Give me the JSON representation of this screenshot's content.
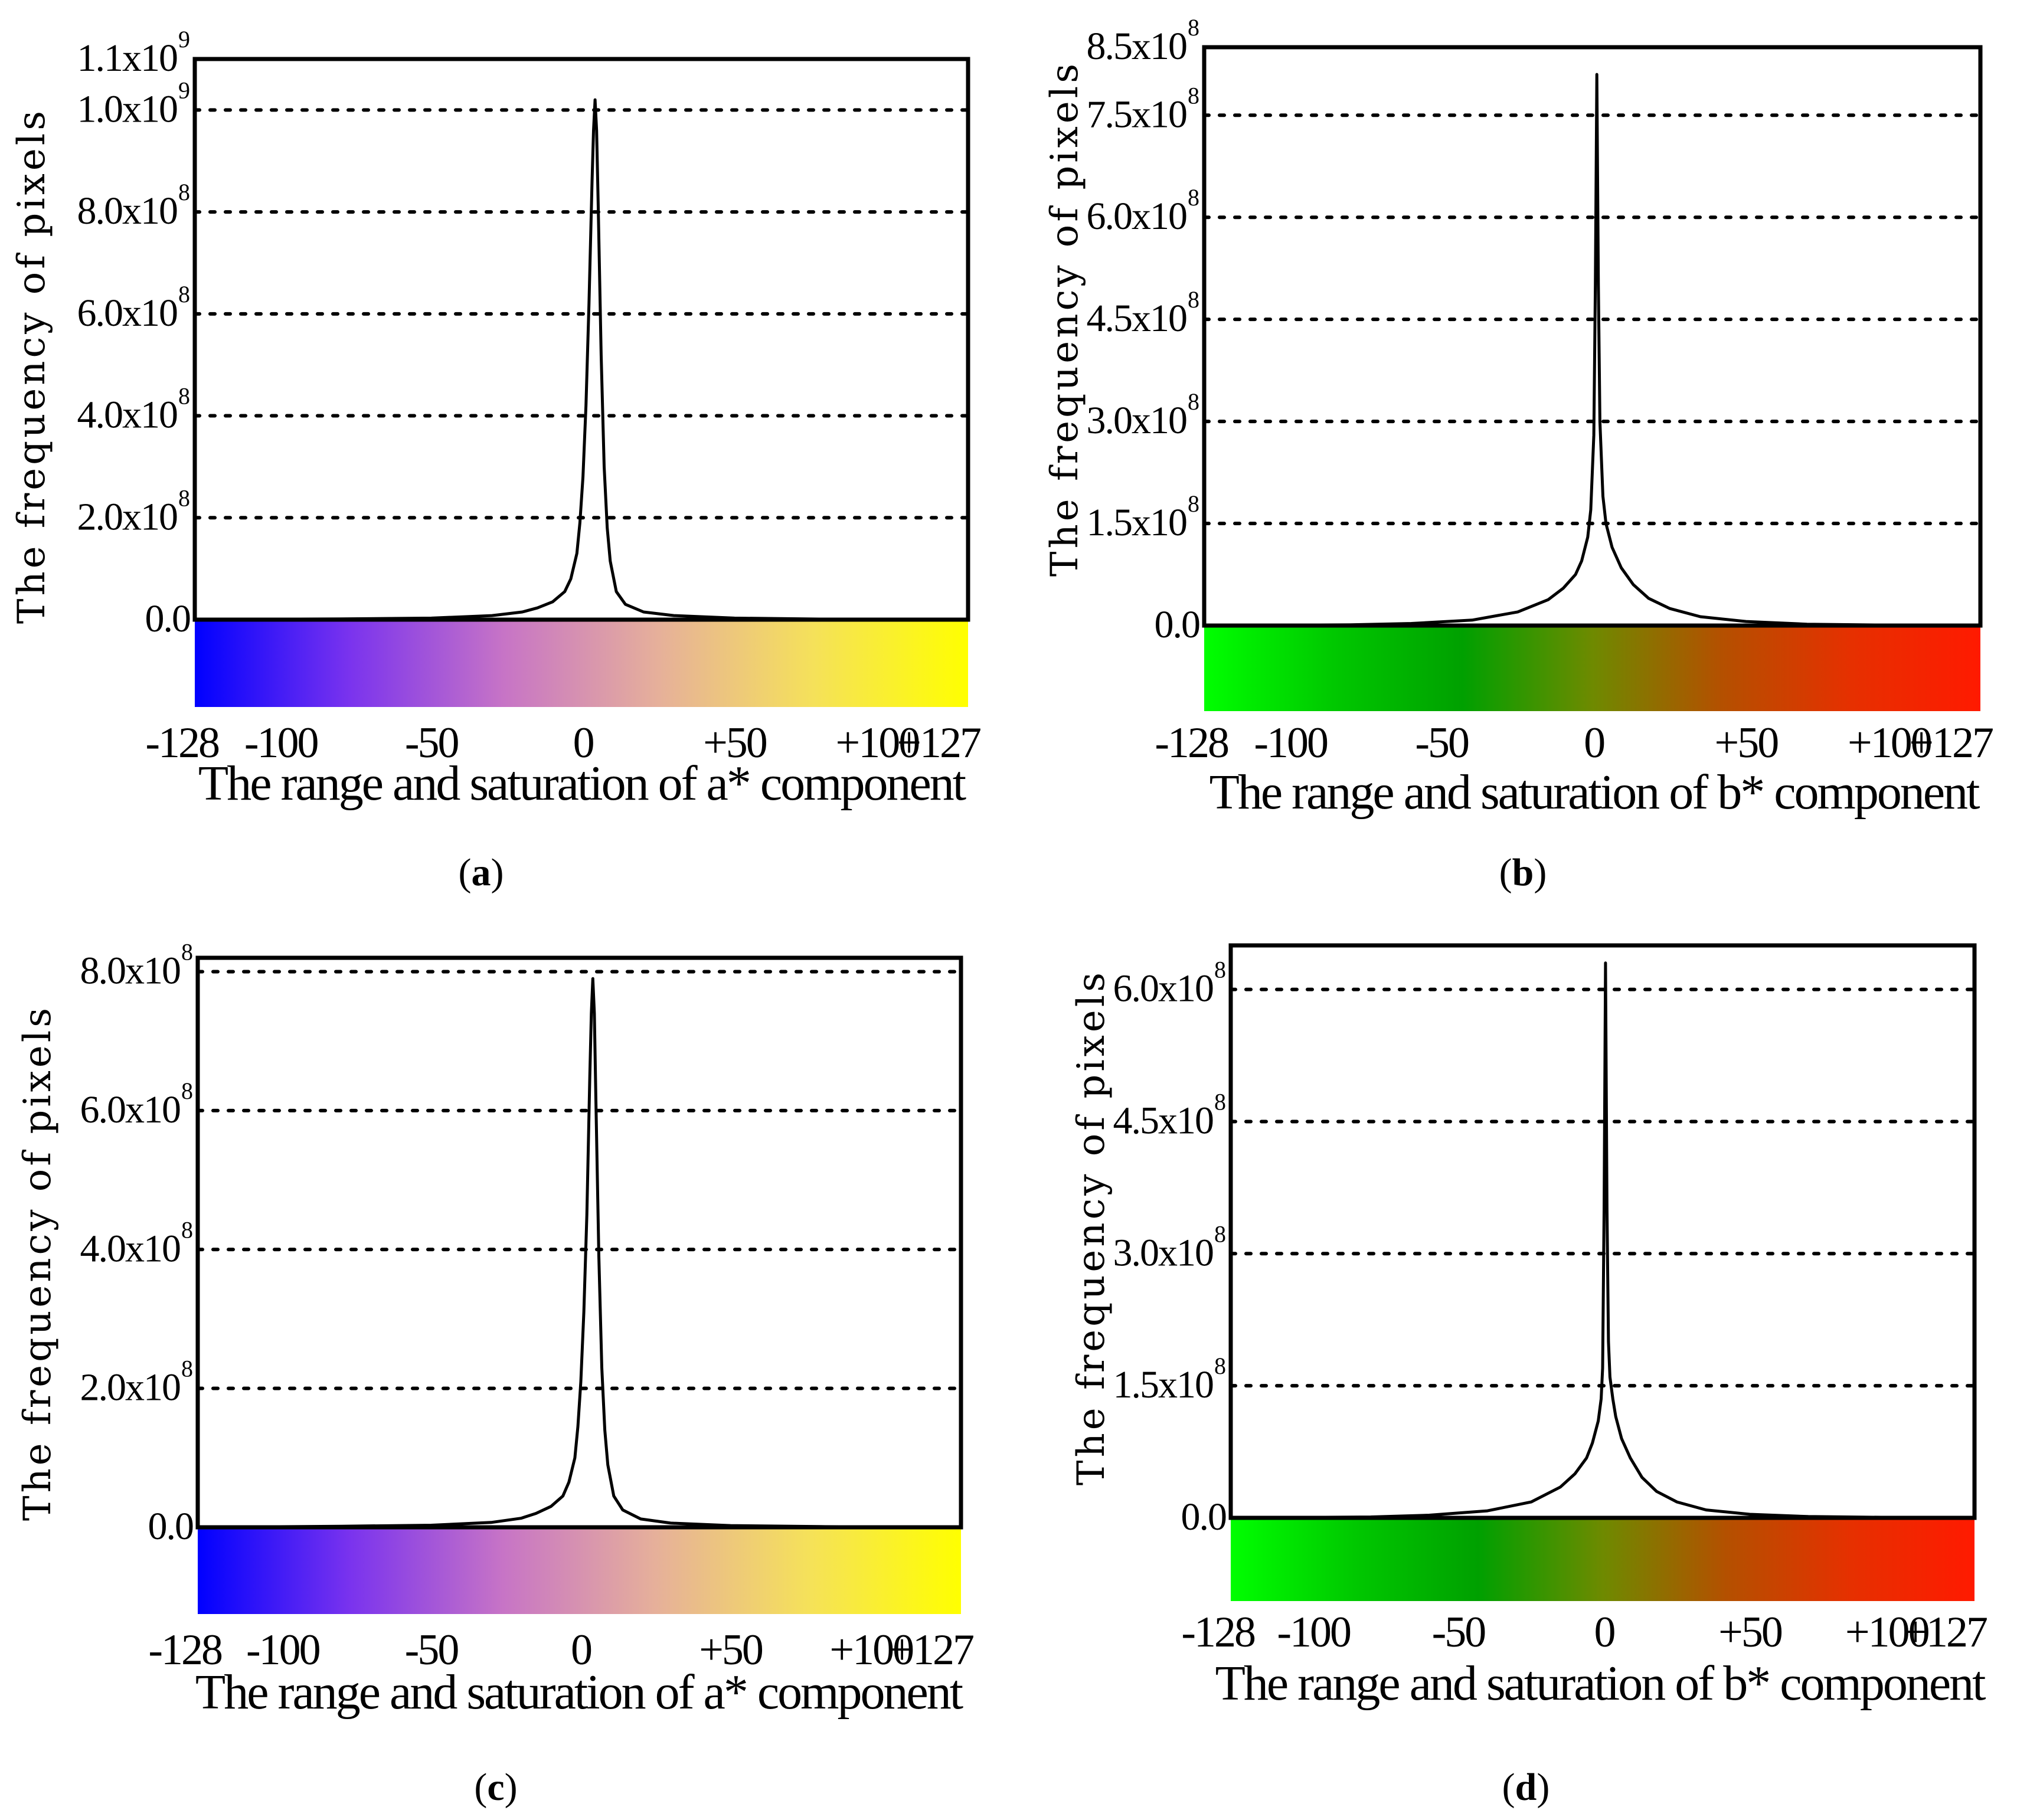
{
  "colors": {
    "line": "#000000",
    "a_star_scale": [
      "#0000ff",
      "#7a33ee",
      "#c774c6",
      "#e6b09a",
      "#f5e15a",
      "#ffff00"
    ],
    "b_star_scale": [
      "#00ff00",
      "#00c800",
      "#00a000",
      "#6e8a00",
      "#b45000",
      "#e63000",
      "#ff1a00"
    ]
  },
  "chart_data": [
    {
      "id": "a",
      "type": "line",
      "caption_label": "a",
      "ylabel": "The frequency of pixels",
      "xlabel": "The range and saturation of a* component",
      "colorbar": "a_star_scale",
      "ylim": [
        0,
        1100000000.0
      ],
      "y_ticks": [
        {
          "value": 0,
          "mantissa": "0.0",
          "exp": ""
        },
        {
          "value": 200000000.0,
          "mantissa": "2.0x10",
          "exp": "8"
        },
        {
          "value": 400000000.0,
          "mantissa": "4.0x10",
          "exp": "8"
        },
        {
          "value": 600000000.0,
          "mantissa": "6.0x10",
          "exp": "8"
        },
        {
          "value": 800000000.0,
          "mantissa": "8.0x10",
          "exp": "8"
        },
        {
          "value": 1000000000.0,
          "mantissa": "1.0x10",
          "exp": "9"
        },
        {
          "value": 1100000000.0,
          "mantissa": "1.1x10",
          "exp": "9"
        }
      ],
      "gridlines": [
        200000000.0,
        400000000.0,
        600000000.0,
        800000000.0,
        1000000000.0
      ],
      "xlim": [
        -128,
        127
      ],
      "x_ticks": [
        {
          "value": -128,
          "label": "-128"
        },
        {
          "value": -100,
          "label": "-100"
        },
        {
          "value": -50,
          "label": "-50"
        },
        {
          "value": 0,
          "label": "0"
        },
        {
          "value": 50,
          "label": "+50"
        },
        {
          "value": 100,
          "label": "+100"
        },
        {
          "value": 127,
          "label": "+127"
        }
      ],
      "peak_x": 4,
      "peak_y": 1020000000.0,
      "x": [
        -128,
        -80,
        -50,
        -30,
        -20,
        -15,
        -10,
        -6,
        -4,
        -2,
        -1,
        0,
        1,
        2,
        3,
        3.5,
        4,
        4.5,
        5,
        6,
        7,
        8,
        9,
        11,
        14,
        20,
        30,
        50,
        80,
        127
      ],
      "y": [
        0,
        1500000.0,
        3000000.0,
        8000000.0,
        15000000.0,
        23000000.0,
        35000000.0,
        55000000.0,
        80000000.0,
        130000000.0,
        190000000.0,
        280000000.0,
        420000000.0,
        620000000.0,
        860000000.0,
        960000000.0,
        1020000000.0,
        960000000.0,
        820000000.0,
        520000000.0,
        300000000.0,
        180000000.0,
        115000000.0,
        55000000.0,
        30000000.0,
        15000000.0,
        8000000.0,
        3000000.0,
        1000000.0,
        0
      ]
    },
    {
      "id": "b",
      "type": "line",
      "caption_label": "b",
      "ylabel": "The frequency of pixels",
      "xlabel": "The range and saturation of b* component",
      "colorbar": "b_star_scale",
      "ylim": [
        0,
        850000000.0
      ],
      "y_ticks": [
        {
          "value": 0,
          "mantissa": "0.0",
          "exp": ""
        },
        {
          "value": 150000000.0,
          "mantissa": "1.5x10",
          "exp": "8"
        },
        {
          "value": 300000000.0,
          "mantissa": "3.0x10",
          "exp": "8"
        },
        {
          "value": 450000000.0,
          "mantissa": "4.5x10",
          "exp": "8"
        },
        {
          "value": 600000000.0,
          "mantissa": "6.0x10",
          "exp": "8"
        },
        {
          "value": 750000000.0,
          "mantissa": "7.5x10",
          "exp": "8"
        },
        {
          "value": 850000000.0,
          "mantissa": "8.5x10",
          "exp": "8"
        }
      ],
      "gridlines": [
        150000000.0,
        300000000.0,
        450000000.0,
        600000000.0,
        750000000.0
      ],
      "xlim": [
        -128,
        127
      ],
      "x_ticks": [
        {
          "value": -128,
          "label": "-128"
        },
        {
          "value": -100,
          "label": "-100"
        },
        {
          "value": -50,
          "label": "-50"
        },
        {
          "value": 0,
          "label": "0"
        },
        {
          "value": 50,
          "label": "+50"
        },
        {
          "value": 100,
          "label": "+100"
        },
        {
          "value": 127,
          "label": "+127"
        }
      ],
      "peak_x": 1,
      "peak_y": 810000000.0,
      "x": [
        -128,
        -80,
        -60,
        -40,
        -25,
        -15,
        -10,
        -6,
        -4,
        -2,
        -1,
        0,
        0.5,
        1,
        1.5,
        2,
        3,
        4,
        6,
        9,
        13,
        18,
        25,
        35,
        50,
        70,
        100,
        127
      ],
      "y": [
        0,
        1000000.0,
        3000000.0,
        8000000.0,
        20000000.0,
        38000000.0,
        55000000.0,
        75000000.0,
        95000000.0,
        130000000.0,
        170000000.0,
        280000000.0,
        500000000.0,
        810000000.0,
        500000000.0,
        300000000.0,
        190000000.0,
        150000000.0,
        115000000.0,
        85000000.0,
        60000000.0,
        40000000.0,
        25000000.0,
        13000000.0,
        6000000.0,
        2000000.0,
        500000.0,
        0
      ]
    },
    {
      "id": "c",
      "type": "line",
      "caption_label": "c",
      "ylabel": "The frequency of pixels",
      "xlabel": "The range and saturation of a* component",
      "colorbar": "a_star_scale",
      "ylim": [
        0,
        820000000.0
      ],
      "y_ticks": [
        {
          "value": 0,
          "mantissa": "0.0",
          "exp": ""
        },
        {
          "value": 200000000.0,
          "mantissa": "2.0x10",
          "exp": "8"
        },
        {
          "value": 400000000.0,
          "mantissa": "4.0x10",
          "exp": "8"
        },
        {
          "value": 600000000.0,
          "mantissa": "6.0x10",
          "exp": "8"
        },
        {
          "value": 800000000.0,
          "mantissa": "8.0x10",
          "exp": "8"
        }
      ],
      "gridlines": [
        200000000.0,
        400000000.0,
        600000000.0,
        800000000.0
      ],
      "xlim": [
        -128,
        127
      ],
      "x_ticks": [
        {
          "value": -128,
          "label": "-128"
        },
        {
          "value": -100,
          "label": "-100"
        },
        {
          "value": -50,
          "label": "-50"
        },
        {
          "value": 0,
          "label": "0"
        },
        {
          "value": 50,
          "label": "+50"
        },
        {
          "value": 100,
          "label": "+100"
        },
        {
          "value": 127,
          "label": "+127"
        }
      ],
      "peak_x": 4,
      "peak_y": 790000000.0,
      "x": [
        -128,
        -80,
        -50,
        -30,
        -20,
        -15,
        -10,
        -6,
        -4,
        -2,
        -1,
        0,
        1,
        2,
        3,
        3.5,
        4,
        4.5,
        5,
        6,
        7,
        8,
        9,
        11,
        14,
        20,
        30,
        50,
        80,
        127
      ],
      "y": [
        0,
        1500000.0,
        3000000.0,
        7000000.0,
        13000000.0,
        20000000.0,
        30000000.0,
        45000000.0,
        65000000.0,
        100000000.0,
        145000000.0,
        210000000.0,
        310000000.0,
        450000000.0,
        650000000.0,
        740000000.0,
        790000000.0,
        740000000.0,
        620000000.0,
        390000000.0,
        230000000.0,
        140000000.0,
        90000000.0,
        45000000.0,
        25000000.0,
        12000000.0,
        6000000.0,
        2500000.0,
        1000000.0,
        0
      ]
    },
    {
      "id": "d",
      "type": "line",
      "caption_label": "d",
      "ylabel": "The frequency of pixels",
      "xlabel": "The range and saturation of b* component",
      "colorbar": "b_star_scale",
      "ylim": [
        0,
        650000000.0
      ],
      "y_ticks": [
        {
          "value": 0,
          "mantissa": "0.0",
          "exp": ""
        },
        {
          "value": 150000000.0,
          "mantissa": "1.5x10",
          "exp": "8"
        },
        {
          "value": 300000000.0,
          "mantissa": "3.0x10",
          "exp": "8"
        },
        {
          "value": 450000000.0,
          "mantissa": "4.5x10",
          "exp": "8"
        },
        {
          "value": 600000000.0,
          "mantissa": "6.0x10",
          "exp": "8"
        }
      ],
      "gridlines": [
        150000000.0,
        300000000.0,
        450000000.0,
        600000000.0
      ],
      "xlim": [
        -128,
        127
      ],
      "x_ticks": [
        {
          "value": -128,
          "label": "-128"
        },
        {
          "value": -100,
          "label": "-100"
        },
        {
          "value": -50,
          "label": "-50"
        },
        {
          "value": 0,
          "label": "0"
        },
        {
          "value": 50,
          "label": "+50"
        },
        {
          "value": 100,
          "label": "+100"
        },
        {
          "value": 127,
          "label": "+127"
        }
      ],
      "peak_x": 0.5,
      "peak_y": 630000000.0,
      "x": [
        -128,
        -80,
        -60,
        -40,
        -25,
        -15,
        -10,
        -6,
        -4,
        -2,
        -1,
        -0.5,
        0,
        0.5,
        1,
        1.5,
        2,
        3,
        4,
        6,
        9,
        13,
        18,
        25,
        35,
        50,
        70,
        100,
        127
      ],
      "y": [
        0,
        1000000.0,
        3000000.0,
        8000000.0,
        18000000.0,
        35000000.0,
        50000000.0,
        68000000.0,
        85000000.0,
        110000000.0,
        135000000.0,
        170000000.0,
        350000000.0,
        630000000.0,
        350000000.0,
        200000000.0,
        160000000.0,
        135000000.0,
        115000000.0,
        90000000.0,
        68000000.0,
        46000000.0,
        30000000.0,
        18000000.0,
        9000000.0,
        4000000.0,
        1500000.0,
        500000.0,
        0
      ]
    }
  ]
}
